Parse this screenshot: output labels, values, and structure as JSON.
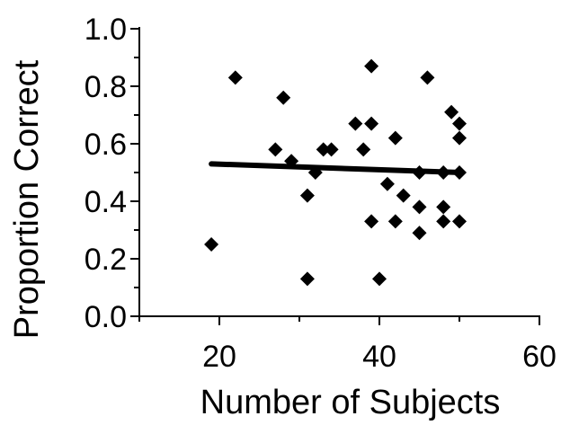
{
  "chart_data": {
    "type": "scatter",
    "title": "",
    "xlabel": "Number of Subjects",
    "ylabel": "Proportion Correct",
    "xlim": [
      10,
      60
    ],
    "ylim": [
      0.0,
      1.0
    ],
    "xticks": [
      20,
      40,
      60
    ],
    "xtick_labels": [
      "20",
      "40",
      "60"
    ],
    "yticks": [
      0.0,
      0.2,
      0.4,
      0.6,
      0.8,
      1.0
    ],
    "ytick_labels": [
      "0.0",
      "0.2",
      "0.4",
      "0.6",
      "0.8",
      "1.0"
    ],
    "grid": false,
    "marker": "diamond",
    "marker_color": "#000000",
    "points": [
      {
        "x": 19,
        "y": 0.25
      },
      {
        "x": 22,
        "y": 0.83
      },
      {
        "x": 27,
        "y": 0.58
      },
      {
        "x": 28,
        "y": 0.76
      },
      {
        "x": 29,
        "y": 0.54
      },
      {
        "x": 31,
        "y": 0.42
      },
      {
        "x": 31,
        "y": 0.13
      },
      {
        "x": 32,
        "y": 0.5
      },
      {
        "x": 33,
        "y": 0.58
      },
      {
        "x": 34,
        "y": 0.58
      },
      {
        "x": 37,
        "y": 0.67
      },
      {
        "x": 38,
        "y": 0.58
      },
      {
        "x": 39,
        "y": 0.87
      },
      {
        "x": 39,
        "y": 0.67
      },
      {
        "x": 39,
        "y": 0.33
      },
      {
        "x": 40,
        "y": 0.13
      },
      {
        "x": 41,
        "y": 0.46
      },
      {
        "x": 42,
        "y": 0.62
      },
      {
        "x": 42,
        "y": 0.33
      },
      {
        "x": 43,
        "y": 0.42
      },
      {
        "x": 45,
        "y": 0.5
      },
      {
        "x": 45,
        "y": 0.38
      },
      {
        "x": 45,
        "y": 0.29
      },
      {
        "x": 46,
        "y": 0.83
      },
      {
        "x": 48,
        "y": 0.5
      },
      {
        "x": 48,
        "y": 0.38
      },
      {
        "x": 48,
        "y": 0.33
      },
      {
        "x": 49,
        "y": 0.71
      },
      {
        "x": 50,
        "y": 0.67
      },
      {
        "x": 50,
        "y": 0.62
      },
      {
        "x": 50,
        "y": 0.5
      },
      {
        "x": 50,
        "y": 0.33
      }
    ],
    "trendline": {
      "x": [
        19,
        50
      ],
      "y": [
        0.53,
        0.5
      ]
    }
  }
}
